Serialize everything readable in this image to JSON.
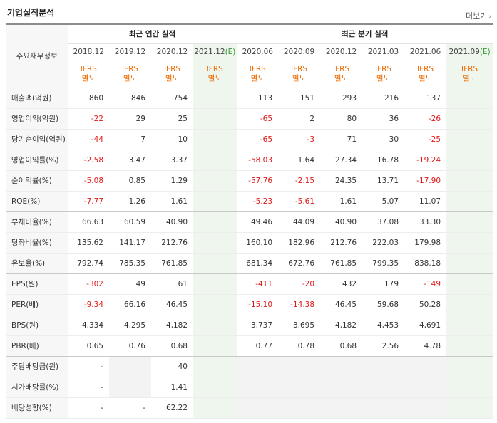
{
  "header": {
    "title": "기업실적분석",
    "more": "더보기"
  },
  "table": {
    "metric_header": "주요재무정보",
    "group_annual": "최근 연간 실적",
    "group_quarter": "최근 분기 실적",
    "periods": [
      "2018.12",
      "2019.12",
      "2020.12",
      "2021.12(E)",
      "2020.06",
      "2020.09",
      "2020.12",
      "2021.03",
      "2021.06",
      "2021.09(E)"
    ],
    "ifrs_top": "IFRS",
    "ifrs_bottom": "별도",
    "rows": [
      {
        "label": "매출액(억원)",
        "values": [
          "860",
          "846",
          "754",
          "",
          "113",
          "151",
          "293",
          "216",
          "137",
          ""
        ]
      },
      {
        "label": "영업이익(억원)",
        "values": [
          "-22",
          "29",
          "25",
          "",
          "-65",
          "2",
          "80",
          "36",
          "-26",
          ""
        ]
      },
      {
        "label": "당기순이익(억원)",
        "values": [
          "-44",
          "7",
          "10",
          "",
          "-65",
          "-3",
          "71",
          "30",
          "-25",
          ""
        ]
      },
      {
        "label": "영업이익률(%)",
        "values": [
          "-2.58",
          "3.47",
          "3.37",
          "",
          "-58.03",
          "1.64",
          "27.34",
          "16.78",
          "-19.24",
          ""
        ]
      },
      {
        "label": "순이익률(%)",
        "values": [
          "-5.08",
          "0.85",
          "1.29",
          "",
          "-57.76",
          "-2.15",
          "24.35",
          "13.71",
          "-17.90",
          ""
        ]
      },
      {
        "label": "ROE(%)",
        "values": [
          "-7.77",
          "1.26",
          "1.61",
          "",
          "-5.23",
          "-5.61",
          "1.61",
          "5.07",
          "11.07",
          ""
        ]
      },
      {
        "label": "부채비율(%)",
        "values": [
          "66.63",
          "60.59",
          "40.90",
          "",
          "49.46",
          "44.09",
          "40.90",
          "37.08",
          "33.30",
          ""
        ]
      },
      {
        "label": "당좌비율(%)",
        "values": [
          "135.62",
          "141.17",
          "212.76",
          "",
          "160.10",
          "182.96",
          "212.76",
          "222.03",
          "179.98",
          ""
        ]
      },
      {
        "label": "유보율(%)",
        "values": [
          "792.74",
          "785.35",
          "761.85",
          "",
          "681.34",
          "672.76",
          "761.85",
          "799.35",
          "838.18",
          ""
        ]
      },
      {
        "label": "EPS(원)",
        "values": [
          "-302",
          "49",
          "61",
          "",
          "-411",
          "-20",
          "432",
          "179",
          "-149",
          ""
        ]
      },
      {
        "label": "PER(배)",
        "values": [
          "-9.34",
          "66.16",
          "46.45",
          "",
          "-15.10",
          "-14.38",
          "46.45",
          "59.68",
          "50.28",
          ""
        ]
      },
      {
        "label": "BPS(원)",
        "values": [
          "4,334",
          "4,295",
          "4,182",
          "",
          "3,737",
          "3,695",
          "4,182",
          "4,453",
          "4,691",
          ""
        ]
      },
      {
        "label": "PBR(배)",
        "values": [
          "0.65",
          "0.76",
          "0.68",
          "",
          "0.77",
          "0.78",
          "0.68",
          "2.56",
          "4.78",
          ""
        ]
      },
      {
        "label": "주당배당금(원)",
        "values": [
          "-",
          "",
          "40",
          "",
          "",
          "",
          "",
          "",
          "",
          ""
        ]
      },
      {
        "label": "시가배당률(%)",
        "values": [
          "-",
          "",
          "1.41",
          "",
          "",
          "",
          "",
          "",
          "",
          ""
        ]
      },
      {
        "label": "배당성향(%)",
        "values": [
          "-",
          "-",
          "62.22",
          "",
          "",
          "",
          "",
          "",
          "",
          ""
        ]
      }
    ]
  },
  "colors": {
    "negative": "#e11b1b",
    "ifrs": "#ef6b00",
    "estimate": "#3a9a3a",
    "estimate_bg": "#eef6ee"
  }
}
